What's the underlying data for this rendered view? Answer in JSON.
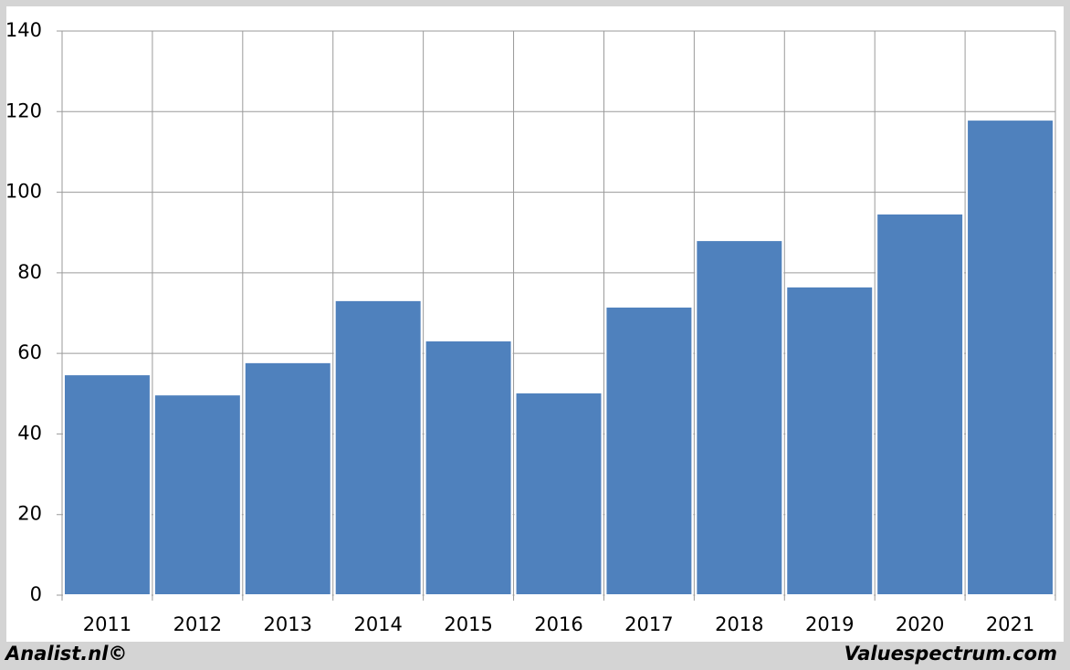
{
  "chart_data": {
    "type": "bar",
    "categories": [
      "2011",
      "2012",
      "2013",
      "2014",
      "2015",
      "2016",
      "2017",
      "2018",
      "2019",
      "2020",
      "2021"
    ],
    "values": [
      54.8,
      49.8,
      57.8,
      73.2,
      63.2,
      50.3,
      71.6,
      88.1,
      76.6,
      94.7,
      118.0
    ],
    "color": "#4f81bd",
    "ylim": [
      0,
      140
    ],
    "yticks": [
      0,
      20,
      40,
      60,
      80,
      100,
      120,
      140
    ],
    "grid": true,
    "source_left": "Analist.nl©",
    "source_right": "Valuespectrum.com"
  }
}
